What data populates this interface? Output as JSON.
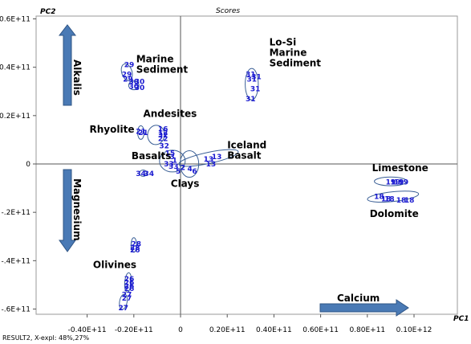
{
  "chart_data": {
    "type": "scatter",
    "title": "Scores",
    "xlabel": "PC1",
    "ylabel": "PC2",
    "xlim": [
      -42000000000.0,
      100000000000.0
    ],
    "ylim": [
      -61000000000.0,
      60000000000.0
    ],
    "x_ticks": [
      -40000000000.0,
      -20000000000.0,
      0,
      20000000000.0,
      40000000000.0,
      60000000000.0,
      80000000000.0,
      100000000000.0
    ],
    "x_tick_labels": [
      "-0.40E+11",
      "-0.20E+11",
      "0",
      "0.20E+11",
      "0.40E+11",
      "0.60E+11",
      "0.80E+11",
      "0.10E+12"
    ],
    "y_ticks": [
      60000000000.0,
      40000000000.0,
      20000000000.0,
      0,
      -20000000000.0,
      -40000000000.0,
      -60000000000.0
    ],
    "y_tick_labels": [
      "0.6E+11",
      "0.4E+11",
      "0.2E+11",
      "0",
      "-.2E+11",
      "-.4E+11",
      "-.6E+11"
    ],
    "footer": "RESULT2, X-expl: 48%,27%",
    "colors": {
      "points": "#1a1ad0",
      "ellipse": "#3a5f96",
      "arrow": "#4a7ab5"
    },
    "points": [
      {
        "label": "29",
        "x": -22000000000.0,
        "y": 41000000000.0
      },
      {
        "label": "29",
        "x": -23000000000.0,
        "y": 37000000000.0
      },
      {
        "label": "30",
        "x": -20000000000.0,
        "y": 34000000000.0
      },
      {
        "label": "29",
        "x": -22500000000.0,
        "y": 35000000000.0
      },
      {
        "label": "30",
        "x": -20000000000.0,
        "y": 32000000000.0
      },
      {
        "label": "30",
        "x": -17500000000.0,
        "y": 34000000000.0
      },
      {
        "label": "30",
        "x": -17500000000.0,
        "y": 31500000000.0
      },
      {
        "label": "31",
        "x": 30000000000.0,
        "y": 37000000000.0
      },
      {
        "label": "31",
        "x": 30500000000.0,
        "y": 35000000000.0
      },
      {
        "label": "31",
        "x": 32500000000.0,
        "y": 36000000000.0
      },
      {
        "label": "31",
        "x": 32000000000.0,
        "y": 31000000000.0
      },
      {
        "label": "31",
        "x": 30000000000.0,
        "y": 27000000000.0
      },
      {
        "label": "21",
        "x": -17000000000.0,
        "y": 13500000000.0
      },
      {
        "label": "21",
        "x": -16000000000.0,
        "y": 13000000000.0
      },
      {
        "label": "16",
        "x": -7500000000.0,
        "y": 14500000000.0
      },
      {
        "label": "12",
        "x": -7500000000.0,
        "y": 13000000000.0
      },
      {
        "label": "32",
        "x": -7500000000.0,
        "y": 12000000000.0
      },
      {
        "label": "22",
        "x": -7500000000.0,
        "y": 10500000000.0
      },
      {
        "label": "32",
        "x": -7000000000.0,
        "y": 7500000000.0
      },
      {
        "label": "15",
        "x": -4500000000.0,
        "y": 4500000000.0
      },
      {
        "label": "3",
        "x": -3500000000.0,
        "y": 3000000000.0
      },
      {
        "label": "1",
        "x": -2500000000.0,
        "y": 1500000000.0
      },
      {
        "label": "33",
        "x": -5000000000.0,
        "y": 0
      },
      {
        "label": "33",
        "x": -3000000000.0,
        "y": -1000000000.0
      },
      {
        "label": "34",
        "x": -17000000000.0,
        "y": -4000000000.0
      },
      {
        "label": "34",
        "x": -13500000000.0,
        "y": -4000000000.0
      },
      {
        "label": "5",
        "x": -1000000000.0,
        "y": -3000000000.0
      },
      {
        "label": "2",
        "x": 1000000000.0,
        "y": -1500000000.0
      },
      {
        "label": "4",
        "x": 4000000000.0,
        "y": -2000000000.0
      },
      {
        "label": "6",
        "x": 6000000000.0,
        "y": -3000000000.0
      },
      {
        "label": "13",
        "x": 12000000000.0,
        "y": 2000000000.0
      },
      {
        "label": "13",
        "x": 13000000000.0,
        "y": 0
      },
      {
        "label": "13",
        "x": 15500000000.0,
        "y": 3000000000.0
      },
      {
        "label": "19",
        "x": 90000000000.0,
        "y": -7500000000.0
      },
      {
        "label": "19",
        "x": 92000000000.0,
        "y": -7500000000.0
      },
      {
        "label": "19",
        "x": 93500000000.0,
        "y": -7500000000.0
      },
      {
        "label": "19",
        "x": 95500000000.0,
        "y": -7500000000.0
      },
      {
        "label": "18",
        "x": 85000000000.0,
        "y": -13500000000.0
      },
      {
        "label": "18",
        "x": 88000000000.0,
        "y": -14500000000.0
      },
      {
        "label": "18",
        "x": 89500000000.0,
        "y": -14500000000.0
      },
      {
        "label": "18",
        "x": 94500000000.0,
        "y": -15000000000.0
      },
      {
        "label": "18",
        "x": 98000000000.0,
        "y": -15000000000.0
      },
      {
        "label": "28",
        "x": -19000000000.0,
        "y": -33000000000.0
      },
      {
        "label": "28",
        "x": -19500000000.0,
        "y": -34500000000.0
      },
      {
        "label": "26",
        "x": -19500000000.0,
        "y": -35500000000.0
      },
      {
        "label": "26",
        "x": -22000000000.0,
        "y": -47500000000.0
      },
      {
        "label": "26",
        "x": -22000000000.0,
        "y": -49000000000.0
      },
      {
        "label": "26",
        "x": -22000000000.0,
        "y": -50500000000.0
      },
      {
        "label": "26",
        "x": -22000000000.0,
        "y": -51500000000.0
      },
      {
        "label": "27",
        "x": -23000000000.0,
        "y": -54000000000.0
      },
      {
        "label": "27",
        "x": -23000000000.0,
        "y": -55500000000.0
      },
      {
        "label": "27",
        "x": -24500000000.0,
        "y": -59500000000.0
      }
    ],
    "groups": [
      {
        "label": "Marine\nSediment",
        "x": -19000000000.0,
        "y": 42000000000.0
      },
      {
        "label": "Lo-Si\nMarine\nSediment",
        "x": 38000000000.0,
        "y": 49000000000.0
      },
      {
        "label": "Andesites",
        "x": -16000000000.0,
        "y": 19500000000.0
      },
      {
        "label": "Rhyolite",
        "x": -39000000000.0,
        "y": 13000000000.0
      },
      {
        "label": "Basalts",
        "x": -21000000000.0,
        "y": 2000000000.0
      },
      {
        "label": "Iceland\nBasalt",
        "x": 20000000000.0,
        "y": 6500000000.0
      },
      {
        "label": "Clays",
        "x": -4200000000.0,
        "y": -9500000000.0
      },
      {
        "label": "Limestone",
        "x": 82000000000.0,
        "y": -3000000000.0
      },
      {
        "label": "Dolomite",
        "x": 81000000000.0,
        "y": -22000000000.0
      },
      {
        "label": "Olivines",
        "x": -37500000000.0,
        "y": -43000000000.0
      }
    ],
    "ellipses": [
      {
        "cx": -23000000000.0,
        "cy": 38000000000.0,
        "rx": 2200000000.0,
        "ry": 3500000000.0,
        "rot": -18
      },
      {
        "cx": -20000000000.0,
        "cy": 32500000000.0,
        "rx": 2200000000.0,
        "ry": 1800000000.0,
        "rot": 0
      },
      {
        "cx": 30500000000.0,
        "cy": 33000000000.0,
        "rx": 2800000000.0,
        "ry": 6500000000.0,
        "rot": 0
      },
      {
        "cx": -17000000000.0,
        "cy": 13000000000.0,
        "rx": 1400000000.0,
        "ry": 2800000000.0,
        "rot": 0
      },
      {
        "cx": -10500000000.0,
        "cy": 12000000000.0,
        "rx": 3600000000.0,
        "ry": 4000000000.0,
        "rot": 8
      },
      {
        "cx": -3500000000.0,
        "cy": 1200000000.0,
        "rx": 5500000000.0,
        "ry": 4500000000.0,
        "rot": 0
      },
      {
        "cx": 3800000000.0,
        "cy": 0,
        "rx": 4000000000.0,
        "ry": 5500000000.0,
        "rot": 0
      },
      {
        "cx": 12000000000.0,
        "cy": 2500000000.0,
        "rx": 13000000000.0,
        "ry": 2300000000.0,
        "rot": -12
      },
      {
        "cx": -16000000000.0,
        "cy": -3800000000.0,
        "rx": 1600000000.0,
        "ry": 1300000000.0,
        "rot": 0
      },
      {
        "cx": 90000000000.0,
        "cy": -7200000000.0,
        "rx": 7000000000.0,
        "ry": 1800000000.0,
        "rot": 0
      },
      {
        "cx": 91000000000.0,
        "cy": -13500000000.0,
        "rx": 11000000000.0,
        "ry": 2000000000.0,
        "rot": -6
      },
      {
        "cx": -20000000000.0,
        "cy": -33500000000.0,
        "rx": 1200000000.0,
        "ry": 3000000000.0,
        "rot": 0
      },
      {
        "cx": -22500000000.0,
        "cy": -49000000000.0,
        "rx": 1400000000.0,
        "ry": 4000000000.0,
        "rot": 5
      },
      {
        "cx": -24500000000.0,
        "cy": -57000000000.0,
        "rx": 1600000000.0,
        "ry": 3200000000.0,
        "rot": 10
      }
    ],
    "arrows": [
      {
        "label": "Alkalis",
        "direction": "vertical"
      },
      {
        "label": "Magnesium",
        "direction": "vertical"
      },
      {
        "label": "Calcium",
        "direction": "horizontal"
      }
    ]
  }
}
